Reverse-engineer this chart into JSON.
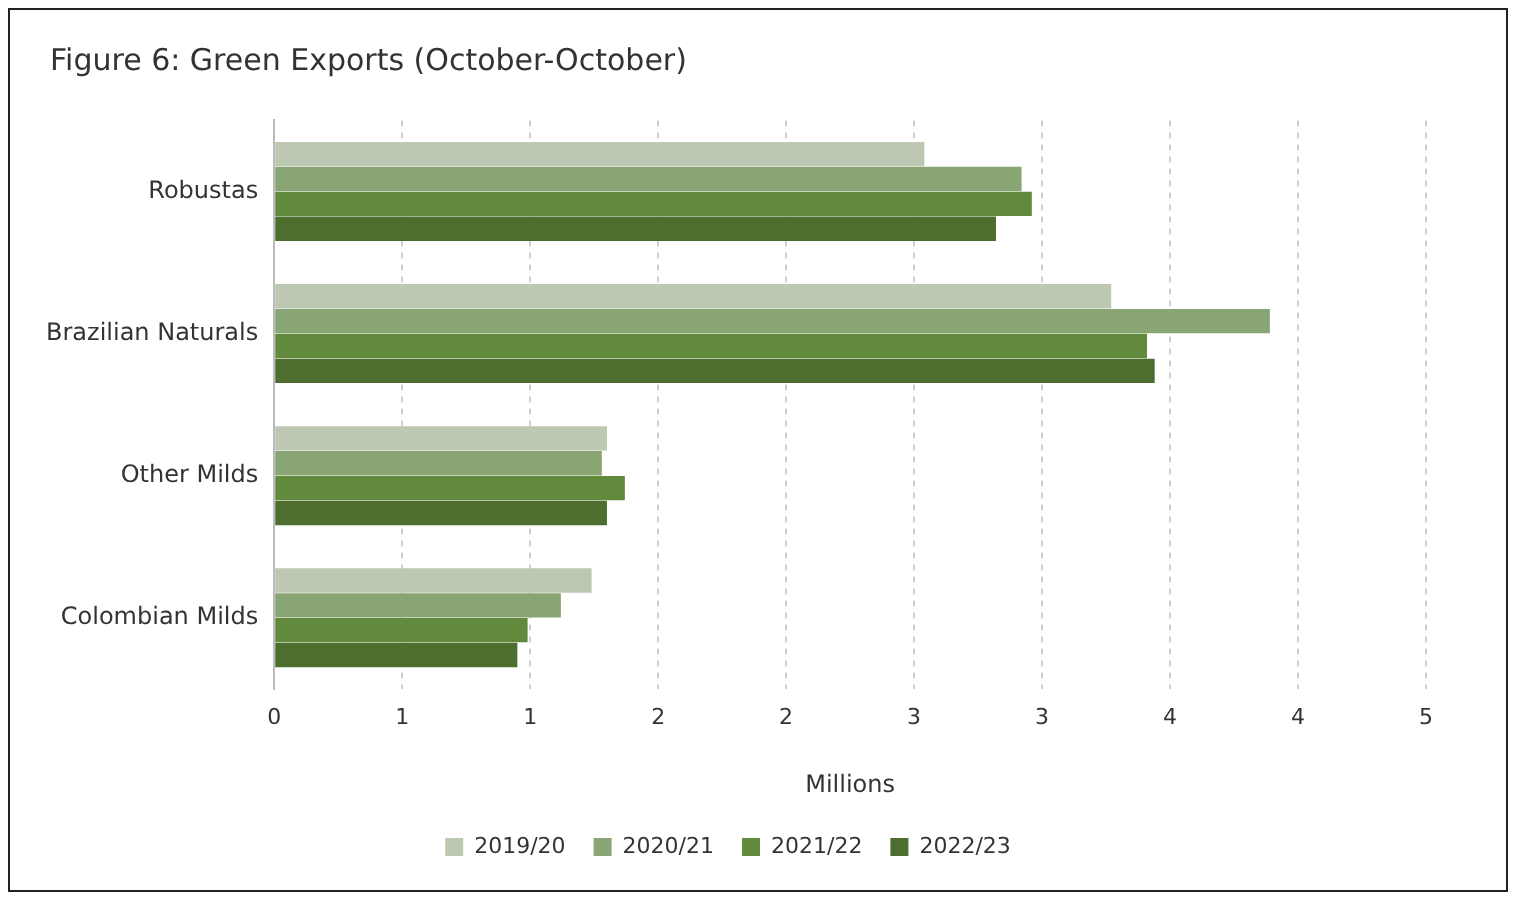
{
  "chart_data": {
    "type": "bar",
    "orientation": "horizontal",
    "title": "Figure 6: Green Exports (October-October)",
    "xlabel": "Millions",
    "categories": [
      "Robustas",
      "Brazilian Naturals",
      "Other Milds",
      "Colombian Milds"
    ],
    "series": [
      {
        "name": "2019/20",
        "color": "#bcc8b1",
        "values": [
          2.54,
          3.27,
          1.3,
          1.24
        ]
      },
      {
        "name": "2020/21",
        "color": "#8aa574",
        "values": [
          2.92,
          3.89,
          1.28,
          1.12
        ]
      },
      {
        "name": "2021/22",
        "color": "#628a3d",
        "values": [
          2.96,
          3.41,
          1.37,
          0.99
        ]
      },
      {
        "name": "2022/23",
        "color": "#4e6e2f",
        "values": [
          2.82,
          3.44,
          1.3,
          0.95
        ]
      }
    ],
    "xlim": [
      0,
      4.5
    ],
    "xticks": [
      0,
      {
        "value": 0.5,
        "label": "1"
      },
      1,
      {
        "value": 1.5,
        "label": "2"
      },
      2,
      {
        "value": 2.5,
        "label": "3"
      },
      3,
      {
        "value": 3.5,
        "label": "4"
      },
      4,
      {
        "value": 4.5,
        "label": "5"
      }
    ],
    "grid": "x",
    "legend": "bottom"
  }
}
